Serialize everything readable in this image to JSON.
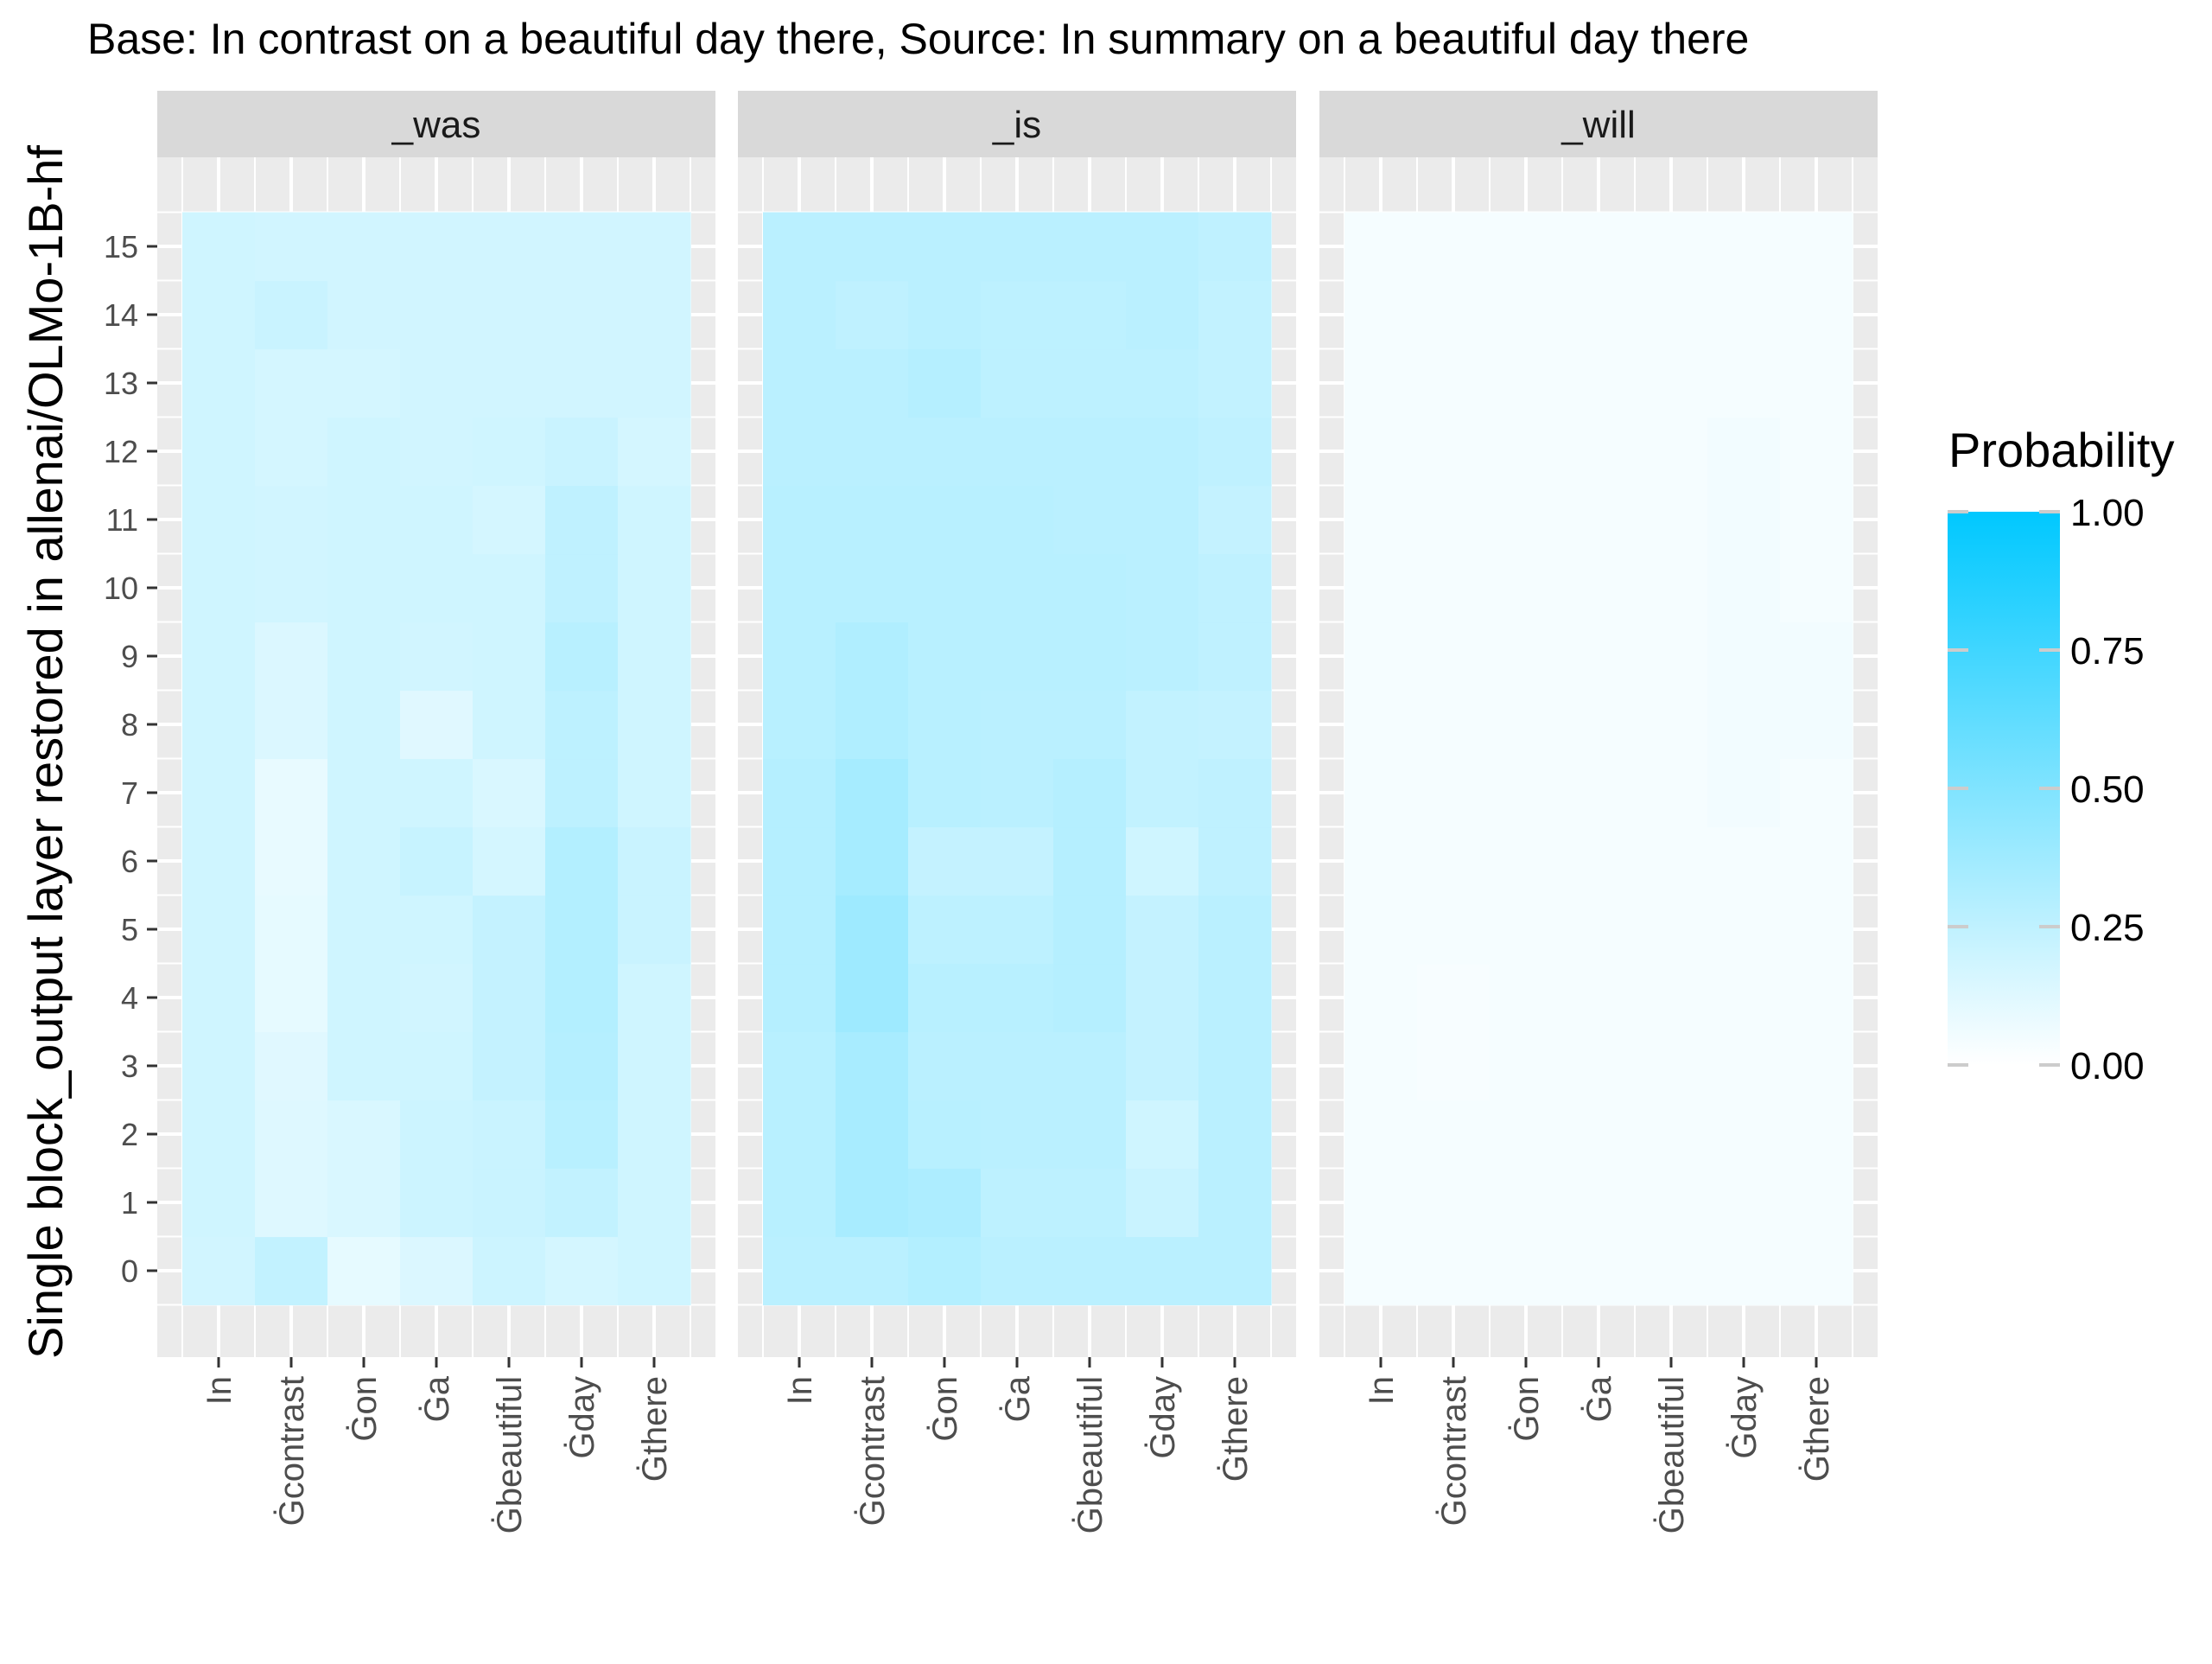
{
  "chart_data": {
    "type": "heatmap",
    "title": "Base: In contrast on a beautiful day there, Source: In summary on a beautiful day there",
    "ylabel": "Single block_output layer restored in allenai/OLMo-1B-hf",
    "xlabel": "",
    "x_categories": [
      "In",
      "Ġcontrast",
      "Ġon",
      "Ġa",
      "Ġbeautiful",
      "Ġday",
      "Ġthere"
    ],
    "y_categories": [
      "0",
      "1",
      "2",
      "3",
      "4",
      "5",
      "6",
      "7",
      "8",
      "9",
      "10",
      "11",
      "12",
      "13",
      "14",
      "15"
    ],
    "legend": {
      "title": "Probability",
      "ticks": [
        "0.00",
        "0.25",
        "0.50",
        "0.75",
        "1.00"
      ],
      "tick_values": [
        0,
        0.25,
        0.5,
        0.75,
        1
      ],
      "low_color": "#ffffff",
      "high_color": "#00c8ff",
      "placement": "right"
    },
    "panels": [
      {
        "name": "_was",
        "values": [
          [
            0.18,
            0.24,
            0.1,
            0.14,
            0.2,
            0.17,
            0.19
          ],
          [
            0.19,
            0.13,
            0.15,
            0.2,
            0.21,
            0.24,
            0.19
          ],
          [
            0.19,
            0.13,
            0.15,
            0.2,
            0.21,
            0.28,
            0.19
          ],
          [
            0.19,
            0.12,
            0.19,
            0.19,
            0.23,
            0.29,
            0.19
          ],
          [
            0.19,
            0.1,
            0.19,
            0.18,
            0.23,
            0.3,
            0.19
          ],
          [
            0.19,
            0.1,
            0.19,
            0.19,
            0.23,
            0.3,
            0.21
          ],
          [
            0.19,
            0.09,
            0.19,
            0.22,
            0.17,
            0.3,
            0.21
          ],
          [
            0.19,
            0.09,
            0.19,
            0.19,
            0.15,
            0.26,
            0.19
          ],
          [
            0.19,
            0.14,
            0.19,
            0.12,
            0.19,
            0.26,
            0.19
          ],
          [
            0.19,
            0.14,
            0.19,
            0.18,
            0.19,
            0.28,
            0.19
          ],
          [
            0.19,
            0.18,
            0.19,
            0.19,
            0.19,
            0.25,
            0.19
          ],
          [
            0.19,
            0.18,
            0.19,
            0.19,
            0.17,
            0.25,
            0.19
          ],
          [
            0.19,
            0.17,
            0.19,
            0.18,
            0.19,
            0.21,
            0.17
          ],
          [
            0.19,
            0.17,
            0.17,
            0.18,
            0.18,
            0.18,
            0.18
          ],
          [
            0.19,
            0.21,
            0.18,
            0.18,
            0.18,
            0.18,
            0.18
          ],
          [
            0.19,
            0.18,
            0.18,
            0.18,
            0.18,
            0.18,
            0.18
          ]
        ]
      },
      {
        "name": "_is",
        "values": [
          [
            0.27,
            0.27,
            0.3,
            0.27,
            0.27,
            0.27,
            0.27
          ],
          [
            0.28,
            0.34,
            0.32,
            0.26,
            0.26,
            0.21,
            0.27
          ],
          [
            0.28,
            0.34,
            0.28,
            0.27,
            0.27,
            0.19,
            0.27
          ],
          [
            0.28,
            0.34,
            0.27,
            0.27,
            0.27,
            0.23,
            0.27
          ],
          [
            0.29,
            0.38,
            0.28,
            0.28,
            0.29,
            0.23,
            0.27
          ],
          [
            0.29,
            0.38,
            0.26,
            0.26,
            0.29,
            0.23,
            0.27
          ],
          [
            0.29,
            0.35,
            0.23,
            0.23,
            0.29,
            0.19,
            0.25
          ],
          [
            0.29,
            0.35,
            0.28,
            0.27,
            0.29,
            0.24,
            0.25
          ],
          [
            0.28,
            0.31,
            0.28,
            0.27,
            0.27,
            0.24,
            0.23
          ],
          [
            0.28,
            0.31,
            0.28,
            0.28,
            0.28,
            0.27,
            0.25
          ],
          [
            0.28,
            0.28,
            0.28,
            0.28,
            0.28,
            0.27,
            0.25
          ],
          [
            0.28,
            0.28,
            0.28,
            0.28,
            0.27,
            0.27,
            0.23
          ],
          [
            0.27,
            0.27,
            0.27,
            0.27,
            0.27,
            0.27,
            0.25
          ],
          [
            0.27,
            0.27,
            0.29,
            0.26,
            0.26,
            0.26,
            0.24
          ],
          [
            0.27,
            0.25,
            0.27,
            0.26,
            0.26,
            0.27,
            0.24
          ],
          [
            0.27,
            0.27,
            0.27,
            0.27,
            0.27,
            0.27,
            0.25
          ]
        ]
      },
      {
        "name": "_will",
        "values": [
          [
            0.04,
            0.04,
            0.04,
            0.04,
            0.04,
            0.04,
            0.04
          ],
          [
            0.04,
            0.04,
            0.04,
            0.04,
            0.04,
            0.04,
            0.04
          ],
          [
            0.04,
            0.04,
            0.04,
            0.04,
            0.04,
            0.04,
            0.04
          ],
          [
            0.04,
            0.03,
            0.04,
            0.04,
            0.04,
            0.04,
            0.04
          ],
          [
            0.04,
            0.03,
            0.04,
            0.04,
            0.04,
            0.04,
            0.04
          ],
          [
            0.04,
            0.04,
            0.04,
            0.04,
            0.04,
            0.04,
            0.04
          ],
          [
            0.04,
            0.04,
            0.04,
            0.04,
            0.04,
            0.04,
            0.04
          ],
          [
            0.04,
            0.04,
            0.04,
            0.04,
            0.04,
            0.05,
            0.04
          ],
          [
            0.04,
            0.04,
            0.04,
            0.04,
            0.04,
            0.05,
            0.05
          ],
          [
            0.04,
            0.04,
            0.04,
            0.04,
            0.04,
            0.05,
            0.05
          ],
          [
            0.04,
            0.04,
            0.04,
            0.04,
            0.04,
            0.05,
            0.04
          ],
          [
            0.04,
            0.04,
            0.04,
            0.04,
            0.04,
            0.05,
            0.04
          ],
          [
            0.04,
            0.04,
            0.04,
            0.04,
            0.04,
            0.05,
            0.04
          ],
          [
            0.04,
            0.04,
            0.04,
            0.04,
            0.04,
            0.04,
            0.04
          ],
          [
            0.04,
            0.04,
            0.04,
            0.04,
            0.04,
            0.04,
            0.04
          ],
          [
            0.04,
            0.04,
            0.04,
            0.04,
            0.04,
            0.04,
            0.04
          ]
        ]
      }
    ]
  }
}
